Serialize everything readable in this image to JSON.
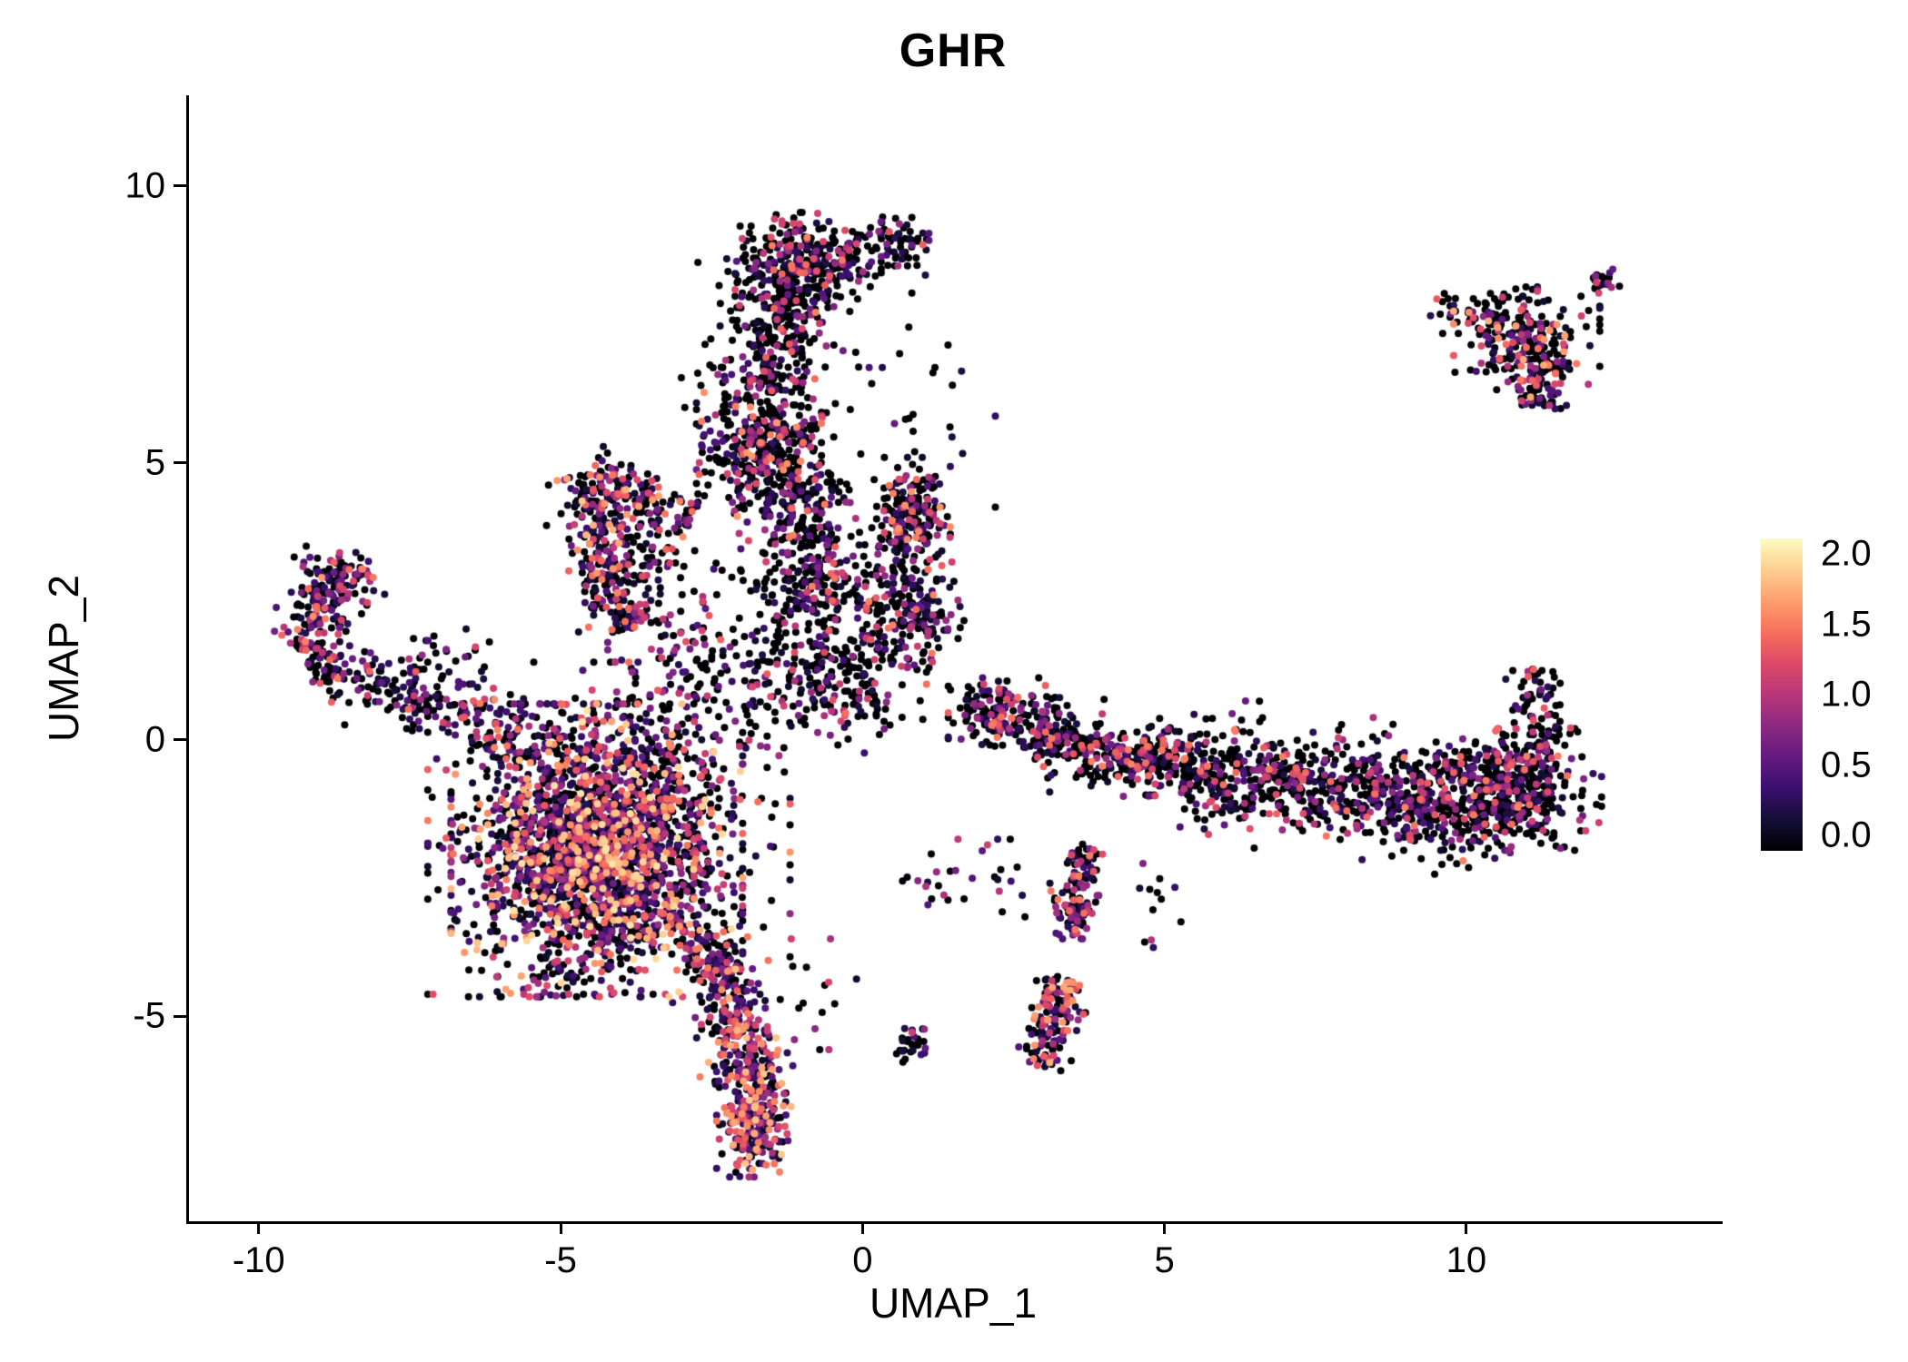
{
  "page": {
    "background": "#ffffff"
  },
  "chart_data": {
    "type": "scatter",
    "title": "GHR",
    "xlabel": "UMAP_1",
    "ylabel": "UMAP_2",
    "xlim": [
      -11.2,
      14.2
    ],
    "ylim": [
      -8.7,
      11.64
    ],
    "x_ticks": [
      -10,
      -5,
      0,
      5,
      10
    ],
    "y_ticks": [
      -5,
      0,
      5,
      10
    ],
    "grid": false,
    "legend_position": "right",
    "point_radius_px": 4,
    "seed": 20240607,
    "n_points": 8937,
    "colorbar": {
      "ticks": [
        "2.0",
        "1.5",
        "1.0",
        "0.5",
        "0.0"
      ],
      "vmin": 0.0,
      "vmax": 2.0,
      "colormap": "magma",
      "stops": [
        "#000004",
        "#140e36",
        "#3b0f70",
        "#641a80",
        "#8c2981",
        "#b73779",
        "#de4968",
        "#f7705c",
        "#fe9f6d",
        "#fece91",
        "#fcfdbf"
      ]
    },
    "clusters": [
      {
        "name": "main-blob-core",
        "type": "gauss",
        "cx": -4.4,
        "cy": -2.0,
        "sx": 1.05,
        "sy": 1.15,
        "n": 2200,
        "zero_frac": 0.38,
        "vmax": 1.9,
        "clamp": 2.3
      },
      {
        "name": "main-blob-halo",
        "type": "gauss",
        "cx": -4.2,
        "cy": -1.6,
        "sx": 1.5,
        "sy": 1.5,
        "n": 380,
        "zero_frac": 0.5,
        "vmax": 1.6,
        "clamp": 2.0
      },
      {
        "name": "blob-upper-bridge",
        "type": "gauss",
        "cx": -2.9,
        "cy": 1.1,
        "sx": 0.6,
        "sy": 0.9,
        "n": 140,
        "zero_frac": 0.5,
        "vmax": 1.5,
        "clamp": 2.2
      },
      {
        "name": "tail-strip",
        "type": "strip",
        "x1": -2.55,
        "y1": -3.5,
        "x2": -1.85,
        "y2": -6.1,
        "w": 0.3,
        "n": 300,
        "zero_frac": 0.3,
        "vmax": 1.8
      },
      {
        "name": "tail-tip",
        "type": "gauss",
        "cx": -1.8,
        "cy": -6.8,
        "sx": 0.28,
        "sy": 0.5,
        "n": 260,
        "zero_frac": 0.25,
        "vmax": 1.8,
        "clamp": 2.2
      },
      {
        "name": "left-hook-lower",
        "type": "strip",
        "x1": -7.0,
        "y1": 0.6,
        "x2": -9.2,
        "y2": 1.4,
        "w": 0.22,
        "n": 130,
        "zero_frac": 0.5,
        "vmax": 1.6
      },
      {
        "name": "left-hook-upper",
        "type": "strip",
        "x1": -9.3,
        "y1": 1.6,
        "x2": -8.5,
        "y2": 3.2,
        "w": 0.28,
        "n": 170,
        "zero_frac": 0.45,
        "vmax": 1.6
      },
      {
        "name": "left-hook-cap",
        "type": "gauss",
        "cx": -8.8,
        "cy": 3.0,
        "sx": 0.3,
        "sy": 0.2,
        "n": 50,
        "zero_frac": 0.5,
        "vmax": 1.4,
        "clamp": 2.2
      },
      {
        "name": "left-bridge",
        "type": "strip",
        "x1": -6.9,
        "y1": 0.5,
        "x2": -5.7,
        "y2": 0.1,
        "w": 0.28,
        "n": 70,
        "zero_frac": 0.5,
        "vmax": 1.5
      },
      {
        "name": "left-arm-scatter",
        "type": "gauss",
        "cx": -7.3,
        "cy": 1.1,
        "sx": 0.8,
        "sy": 0.45,
        "n": 60,
        "zero_frac": 0.55,
        "vmax": 1.4,
        "clamp": 2.0
      },
      {
        "name": "wedge-left-edge",
        "type": "strip",
        "x1": -4.6,
        "y1": 4.8,
        "x2": -3.9,
        "y2": 2.0,
        "w": 0.28,
        "n": 250,
        "zero_frac": 0.4,
        "vmax": 1.8
      },
      {
        "name": "wedge-top-edge",
        "type": "strip",
        "x1": -4.6,
        "y1": 4.8,
        "x2": -2.8,
        "y2": 4.0,
        "w": 0.25,
        "n": 130,
        "zero_frac": 0.45,
        "vmax": 1.7
      },
      {
        "name": "wedge-interior",
        "type": "gauss",
        "cx": -3.6,
        "cy": 3.3,
        "sx": 0.5,
        "sy": 0.6,
        "n": 80,
        "zero_frac": 0.55,
        "vmax": 1.5,
        "clamp": 2.0
      },
      {
        "name": "band-top-blob",
        "type": "gauss",
        "cx": -0.9,
        "cy": 8.6,
        "sx": 0.55,
        "sy": 0.42,
        "n": 320,
        "zero_frac": 0.55,
        "vmax": 1.5,
        "clamp": 2.2
      },
      {
        "name": "band-top-east",
        "type": "gauss",
        "cx": 0.5,
        "cy": 9.0,
        "sx": 0.3,
        "sy": 0.22,
        "n": 70,
        "zero_frac": 0.6,
        "vmax": 1.4,
        "clamp": 2.0
      },
      {
        "name": "band-stem",
        "type": "strip",
        "x1": -1.2,
        "y1": 8.2,
        "x2": -1.5,
        "y2": 6.3,
        "w": 0.35,
        "n": 210,
        "zero_frac": 0.6,
        "vmax": 1.4
      },
      {
        "name": "band-mid-blob",
        "type": "gauss",
        "cx": -1.6,
        "cy": 5.3,
        "sx": 0.5,
        "sy": 0.55,
        "n": 370,
        "zero_frac": 0.55,
        "vmax": 1.6,
        "clamp": 2.3
      },
      {
        "name": "band-lower-strip",
        "type": "strip",
        "x1": -1.3,
        "y1": 4.6,
        "x2": -0.6,
        "y2": 2.4,
        "w": 0.5,
        "n": 320,
        "zero_frac": 0.6,
        "vmax": 1.5
      },
      {
        "name": "band-bottom-spread",
        "type": "gauss",
        "cx": -0.7,
        "cy": 1.3,
        "sx": 0.8,
        "sy": 0.7,
        "n": 320,
        "zero_frac": 0.62,
        "vmax": 1.4,
        "clamp": 2.2
      },
      {
        "name": "band-west-scatter",
        "type": "gauss",
        "cx": -2.0,
        "cy": 6.9,
        "sx": 0.5,
        "sy": 0.9,
        "n": 60,
        "zero_frac": 0.68,
        "vmax": 1.3,
        "clamp": 2.0
      },
      {
        "name": "band-east-scatter",
        "type": "gauss",
        "cx": 0.8,
        "cy": 6.4,
        "sx": 0.7,
        "sy": 1.1,
        "n": 30,
        "zero_frac": 0.7,
        "vmax": 1.2,
        "clamp": 2.0
      },
      {
        "name": "east-blob-upper",
        "type": "gauss",
        "cx": 0.75,
        "cy": 4.0,
        "sx": 0.32,
        "sy": 0.5,
        "n": 220,
        "zero_frac": 0.5,
        "vmax": 1.6,
        "clamp": 2.2
      },
      {
        "name": "east-blob-lower",
        "type": "gauss",
        "cx": 0.8,
        "cy": 2.4,
        "sx": 0.4,
        "sy": 0.5,
        "n": 190,
        "zero_frac": 0.55,
        "vmax": 1.5,
        "clamp": 2.2
      },
      {
        "name": "right-band-start-blob",
        "type": "gauss",
        "cx": 2.3,
        "cy": 0.5,
        "sx": 0.4,
        "sy": 0.28,
        "n": 160,
        "zero_frac": 0.5,
        "vmax": 1.5,
        "clamp": 2.2
      },
      {
        "name": "right-band-strip1",
        "type": "strip",
        "x1": 2.8,
        "y1": 0.2,
        "x2": 4.6,
        "y2": -0.5,
        "w": 0.26,
        "n": 250,
        "zero_frac": 0.55,
        "vmax": 1.5
      },
      {
        "name": "right-band-node",
        "type": "gauss",
        "cx": 4.9,
        "cy": -0.4,
        "sx": 0.3,
        "sy": 0.28,
        "n": 120,
        "zero_frac": 0.5,
        "vmax": 1.5,
        "clamp": 2.2
      },
      {
        "name": "right-band-strip2",
        "type": "strip",
        "x1": 5.3,
        "y1": -0.6,
        "x2": 8.5,
        "y2": -1.0,
        "w": 0.4,
        "n": 470,
        "zero_frac": 0.62,
        "vmax": 1.5
      },
      {
        "name": "right-band-strip3",
        "type": "strip",
        "x1": 8.5,
        "y1": -1.2,
        "x2": 11.4,
        "y2": -0.9,
        "w": 0.45,
        "n": 500,
        "zero_frac": 0.6,
        "vmax": 1.5
      },
      {
        "name": "right-band-right-mass",
        "type": "gauss",
        "cx": 10.7,
        "cy": -0.9,
        "sx": 0.7,
        "sy": 0.5,
        "n": 250,
        "zero_frac": 0.6,
        "vmax": 1.5,
        "clamp": 2.2
      },
      {
        "name": "right-band-spur-up",
        "type": "strip",
        "x1": 11.35,
        "y1": -0.4,
        "x2": 11.15,
        "y2": 1.3,
        "w": 0.2,
        "n": 80,
        "zero_frac": 0.55,
        "vmax": 1.4
      },
      {
        "name": "right-band-above-scatter",
        "type": "gauss",
        "cx": 6.3,
        "cy": -0.1,
        "sx": 1.6,
        "sy": 0.45,
        "n": 60,
        "zero_frac": 0.7,
        "vmax": 1.2,
        "clamp": 2.0
      },
      {
        "name": "top-right-cluster-main",
        "type": "gauss",
        "cx": 11.0,
        "cy": 7.3,
        "sx": 0.55,
        "sy": 0.4,
        "n": 200,
        "zero_frac": 0.5,
        "vmax": 1.7,
        "clamp": 2.2
      },
      {
        "name": "top-right-cluster-tail",
        "type": "strip",
        "x1": 11.3,
        "y1": 6.9,
        "x2": 11.15,
        "y2": 6.0,
        "w": 0.25,
        "n": 90,
        "zero_frac": 0.45,
        "vmax": 1.7
      },
      {
        "name": "top-right-cluster-west",
        "type": "gauss",
        "cx": 10.0,
        "cy": 7.7,
        "sx": 0.3,
        "sy": 0.18,
        "n": 40,
        "zero_frac": 0.6,
        "vmax": 1.4,
        "clamp": 2.0
      },
      {
        "name": "top-right-streak",
        "type": "strip",
        "x1": 12.1,
        "y1": 8.2,
        "x2": 12.5,
        "y2": 8.45,
        "w": 0.1,
        "n": 22,
        "zero_frac": 0.5,
        "vmax": 1.3
      },
      {
        "name": "lower-strand1",
        "type": "strip",
        "x1": 3.75,
        "y1": -1.9,
        "x2": 3.45,
        "y2": -3.2,
        "w": 0.18,
        "n": 90,
        "zero_frac": 0.45,
        "vmax": 1.5
      },
      {
        "name": "lower-strand1-node",
        "type": "gauss",
        "cx": 3.5,
        "cy": -3.3,
        "sx": 0.15,
        "sy": 0.15,
        "n": 40,
        "zero_frac": 0.4,
        "vmax": 1.5,
        "clamp": 2.0
      },
      {
        "name": "lower-strand2",
        "type": "strip",
        "x1": 3.35,
        "y1": -4.3,
        "x2": 2.95,
        "y2": -5.9,
        "w": 0.2,
        "n": 150,
        "zero_frac": 0.35,
        "vmax": 1.7
      },
      {
        "name": "pair-blob",
        "type": "gauss",
        "cx": 0.8,
        "cy": -5.45,
        "sx": 0.12,
        "sy": 0.22,
        "n": 28,
        "zero_frac": 0.5,
        "vmax": 1.2,
        "clamp": 2.0
      },
      {
        "name": "mid-lower-scatter",
        "type": "gauss",
        "cx": 1.5,
        "cy": -2.5,
        "sx": 0.65,
        "sy": 0.35,
        "n": 30,
        "zero_frac": 0.5,
        "vmax": 1.3,
        "clamp": 2.0
      },
      {
        "name": "sparse-right-of-tail",
        "type": "gauss",
        "cx": -0.9,
        "cy": -4.6,
        "sx": 0.4,
        "sy": 0.5,
        "n": 15,
        "zero_frac": 0.55,
        "vmax": 1.2,
        "clamp": 2.0
      },
      {
        "name": "strand-gap-dots",
        "type": "gauss",
        "cx": 4.9,
        "cy": -3.0,
        "sx": 0.25,
        "sy": 0.4,
        "n": 12,
        "zero_frac": 0.5,
        "vmax": 1.2,
        "clamp": 2.0
      }
    ]
  }
}
